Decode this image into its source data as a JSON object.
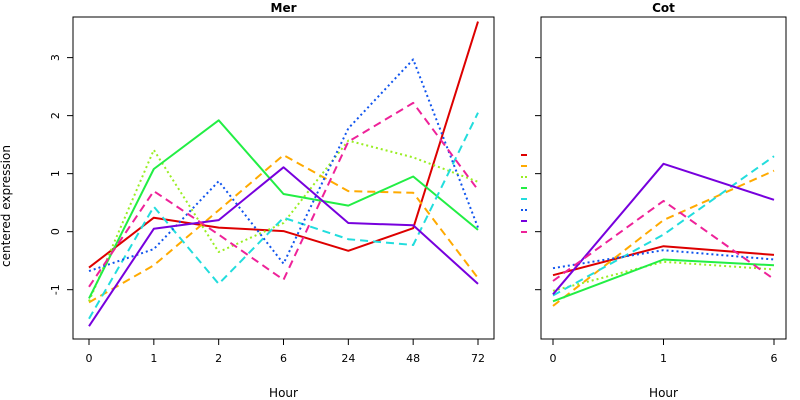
{
  "figure": {
    "ylabel": "centered expression"
  },
  "chart_data": [
    {
      "type": "line",
      "title": "Mer",
      "xlabel": "Hour",
      "ylabel": "centered expression",
      "categories": [
        "0",
        "1",
        "2",
        "6",
        "24",
        "48",
        "72"
      ],
      "yticks": [
        -1,
        0,
        1,
        2,
        3
      ],
      "ylim": [
        -1.85,
        3.7
      ],
      "grid": false,
      "series": [
        {
          "color": "#dd0000",
          "dash": "solid",
          "values": [
            -0.62,
            0.24,
            0.07,
            0.01,
            -0.33,
            0.06,
            3.62
          ]
        },
        {
          "color": "#ffaa00",
          "dash": "dashed",
          "values": [
            -1.22,
            -0.58,
            0.37,
            1.32,
            0.7,
            0.67,
            -0.8
          ]
        },
        {
          "color": "#99ee22",
          "dash": "dotted",
          "values": [
            -1.2,
            1.41,
            -0.35,
            0.15,
            1.57,
            1.28,
            0.86
          ]
        },
        {
          "color": "#22ee44",
          "dash": "solid",
          "values": [
            -1.15,
            1.08,
            1.92,
            0.65,
            0.45,
            0.95,
            0.03
          ]
        },
        {
          "color": "#22dddd",
          "dash": "dashed",
          "values": [
            -1.5,
            0.43,
            -0.9,
            0.24,
            -0.13,
            -0.23,
            2.05
          ]
        },
        {
          "color": "#1155ee",
          "dash": "dotted",
          "values": [
            -0.68,
            -0.3,
            0.87,
            -0.55,
            1.78,
            2.97,
            0.07
          ]
        },
        {
          "color": "#7700dd",
          "dash": "solid",
          "values": [
            -1.63,
            0.05,
            0.2,
            1.11,
            0.15,
            0.11,
            -0.9
          ]
        },
        {
          "color": "#ee2299",
          "dash": "dashed",
          "values": [
            -0.95,
            0.7,
            -0.05,
            -0.83,
            1.55,
            2.22,
            0.72
          ]
        }
      ]
    },
    {
      "type": "line",
      "title": "Cot",
      "xlabel": "Hour",
      "categories": [
        "0",
        "1",
        "6"
      ],
      "ylim": [
        -1.85,
        3.7
      ],
      "grid": false,
      "series": [
        {
          "color": "#dd0000",
          "dash": "solid",
          "values": [
            -0.75,
            -0.25,
            -0.4
          ]
        },
        {
          "color": "#ffaa00",
          "dash": "dashed",
          "values": [
            -1.28,
            0.2,
            1.05
          ]
        },
        {
          "color": "#99ee22",
          "dash": "dotted",
          "values": [
            -1.02,
            -0.52,
            -0.65
          ]
        },
        {
          "color": "#22ee44",
          "dash": "solid",
          "values": [
            -1.2,
            -0.48,
            -0.58
          ]
        },
        {
          "color": "#22dddd",
          "dash": "dashed",
          "values": [
            -1.1,
            -0.05,
            1.3
          ]
        },
        {
          "color": "#1155ee",
          "dash": "dotted",
          "values": [
            -0.63,
            -0.32,
            -0.48
          ]
        },
        {
          "color": "#7700dd",
          "dash": "solid",
          "values": [
            -1.08,
            1.17,
            0.55
          ]
        },
        {
          "color": "#ee2299",
          "dash": "dashed",
          "values": [
            -0.85,
            0.53,
            -0.82
          ]
        }
      ]
    }
  ]
}
